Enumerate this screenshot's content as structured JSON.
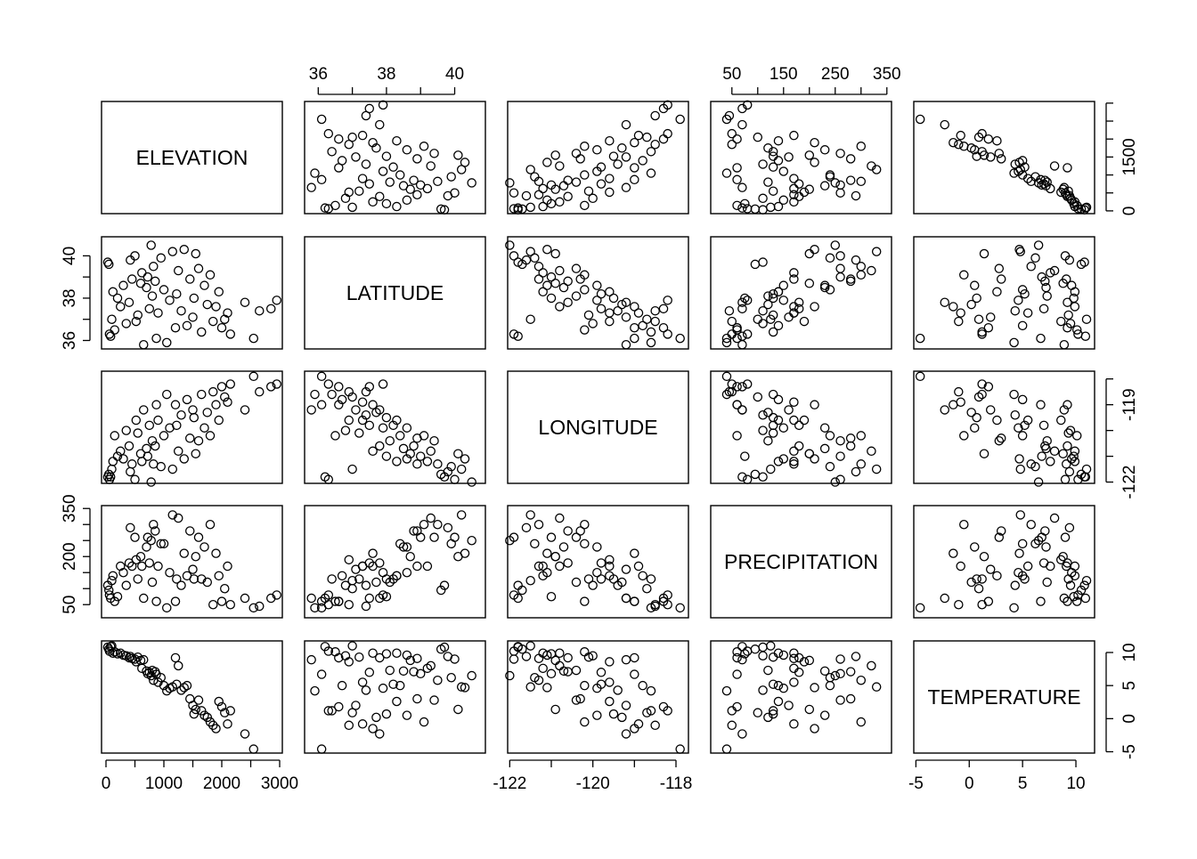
{
  "chart_data": {
    "type": "scatter",
    "layout": "pairs-matrix",
    "variables": [
      "ELEVATION",
      "LATITUDE",
      "LONGITUDE",
      "PRECIPITATION",
      "TEMPERATURE"
    ],
    "ranges": {
      "ELEVATION": [
        -77,
        3046
      ],
      "LATITUDE": [
        35.6,
        40.9
      ],
      "LONGITUDE": [
        -122.05,
        -117.7
      ],
      "PRECIPITATION": [
        9,
        359
      ],
      "TEMPERATURE": [
        -5.2,
        11.75
      ]
    },
    "ticks": {
      "ELEVATION": {
        "marks": [
          0,
          500,
          1000,
          1500,
          2000,
          2500,
          3000
        ],
        "labels_bottom": [
          "0",
          "1000",
          "2000",
          "3000"
        ],
        "labels_right": [
          "0",
          "1500"
        ]
      },
      "LATITUDE": {
        "marks": [
          36,
          37,
          38,
          39,
          40
        ],
        "labels": [
          "36",
          "38",
          "40"
        ]
      },
      "LONGITUDE": {
        "marks": [
          -122,
          -121,
          -120,
          -119,
          -118
        ],
        "labels_bottom": [
          "-122",
          "-120",
          "-118"
        ],
        "labels_right": [
          "-122",
          "-119"
        ]
      },
      "PRECIPITATION": {
        "marks": [
          50,
          100,
          150,
          200,
          250,
          300,
          350
        ],
        "labels_top": [
          "50",
          "150",
          "250",
          "350"
        ],
        "labels_left": [
          "50",
          "200",
          "350"
        ]
      },
      "TEMPERATURE": {
        "marks": [
          -5,
          0,
          5,
          10
        ],
        "labels": [
          "-5",
          "0",
          "5",
          "10"
        ]
      }
    },
    "grid": false,
    "points": [
      [
        30,
        39.7,
        -121.8,
        110,
        10.8
      ],
      [
        50,
        39.6,
        -121.7,
        95,
        10.5
      ],
      [
        60,
        36.3,
        -121.9,
        80,
        10.2
      ],
      [
        80,
        36.2,
        -121.8,
        70,
        10.9
      ],
      [
        100,
        37.0,
        -121.5,
        125,
        11.0
      ],
      [
        120,
        38.3,
        -121.2,
        140,
        9.9
      ],
      [
        150,
        36.5,
        -120.2,
        60,
        10.1
      ],
      [
        200,
        38.0,
        -121.0,
        75,
        9.8
      ],
      [
        250,
        37.6,
        -120.8,
        170,
        9.9
      ],
      [
        300,
        38.6,
        -121.1,
        150,
        9.6
      ],
      [
        350,
        36.8,
        -120.0,
        110,
        9.5
      ],
      [
        400,
        37.8,
        -120.6,
        180,
        9.2
      ],
      [
        420,
        39.8,
        -121.6,
        290,
        9.4
      ],
      [
        450,
        38.9,
        -121.3,
        170,
        9.1
      ],
      [
        500,
        40.0,
        -121.9,
        260,
        9.0
      ],
      [
        520,
        36.9,
        -119.6,
        190,
        8.6
      ],
      [
        550,
        37.2,
        -120.1,
        130,
        9.3
      ],
      [
        600,
        38.7,
        -120.9,
        200,
        8.8
      ],
      [
        620,
        39.2,
        -121.2,
        170,
        7.6
      ],
      [
        650,
        35.8,
        -119.2,
        70,
        8.9
      ],
      [
        700,
        38.5,
        -120.7,
        230,
        7.2
      ],
      [
        720,
        39.0,
        -121.0,
        260,
        6.8
      ],
      [
        750,
        37.5,
        -119.8,
        180,
        7.0
      ],
      [
        780,
        40.5,
        -122.0,
        250,
        6.5
      ],
      [
        800,
        38.1,
        -120.4,
        120,
        7.3
      ],
      [
        820,
        39.5,
        -121.3,
        300,
        5.8
      ],
      [
        850,
        38.8,
        -120.6,
        280,
        7.1
      ],
      [
        870,
        36.1,
        -119.0,
        60,
        6.7
      ],
      [
        900,
        37.3,
        -119.6,
        170,
        5.5
      ],
      [
        950,
        39.9,
        -121.4,
        240,
        6.2
      ],
      [
        1000,
        38.4,
        -120.2,
        240,
        5.0
      ],
      [
        1050,
        35.9,
        -118.6,
        40,
        4.2
      ],
      [
        1100,
        37.9,
        -119.9,
        150,
        4.6
      ],
      [
        1150,
        40.2,
        -121.5,
        330,
        4.8
      ],
      [
        1200,
        36.6,
        -119.0,
        60,
        9.2
      ],
      [
        1220,
        38.2,
        -119.8,
        130,
        5.2
      ],
      [
        1250,
        39.3,
        -120.8,
        320,
        8.0
      ],
      [
        1300,
        37.4,
        -119.4,
        110,
        4.3
      ],
      [
        1350,
        40.3,
        -121.1,
        210,
        4.7
      ],
      [
        1400,
        36.7,
        -118.8,
        140,
        5.0
      ],
      [
        1450,
        38.9,
        -120.3,
        280,
        3.0
      ],
      [
        1500,
        37.1,
        -119.2,
        160,
        2.0
      ],
      [
        1520,
        38.0,
        -119.5,
        130,
        0.7
      ],
      [
        1550,
        40.1,
        -120.9,
        200,
        1.4
      ],
      [
        1600,
        39.4,
        -120.4,
        260,
        2.8
      ],
      [
        1650,
        36.4,
        -118.6,
        130,
        1.2
      ],
      [
        1700,
        38.6,
        -119.9,
        230,
        0.5
      ],
      [
        1750,
        37.7,
        -119.3,
        120,
        0.2
      ],
      [
        1800,
        39.1,
        -120.2,
        300,
        -0.5
      ],
      [
        1850,
        36.9,
        -118.5,
        50,
        -1.0
      ],
      [
        1900,
        37.6,
        -119.0,
        210,
        -1.5
      ],
      [
        1950,
        38.3,
        -119.6,
        140,
        2.6
      ],
      [
        2000,
        36.6,
        -118.3,
        60,
        1.8
      ],
      [
        2050,
        37.0,
        -118.7,
        100,
        0.9
      ],
      [
        2100,
        37.3,
        -118.9,
        170,
        -0.8
      ],
      [
        2150,
        36.3,
        -118.2,
        50,
        1.2
      ],
      [
        2400,
        37.8,
        -119.2,
        70,
        -2.3
      ],
      [
        2550,
        36.1,
        -117.9,
        40,
        -4.6
      ],
      [
        2650,
        37.4,
        -118.5,
        45,
        null
      ],
      [
        2850,
        37.5,
        -118.3,
        70,
        null
      ],
      [
        2950,
        37.9,
        -118.2,
        80,
        null
      ]
    ]
  }
}
